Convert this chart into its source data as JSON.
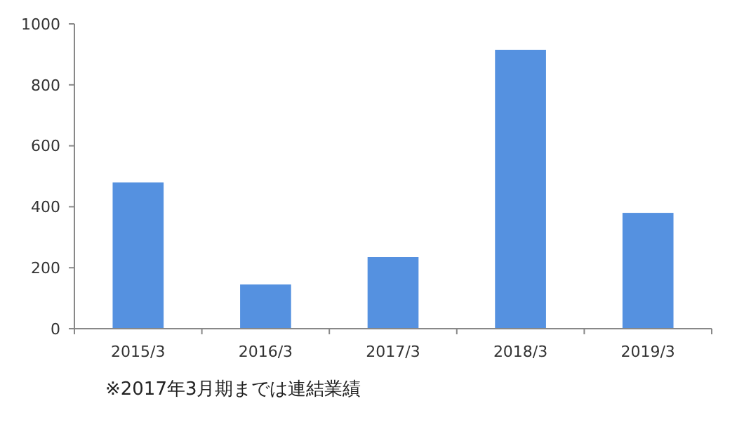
{
  "chart_data": {
    "type": "bar",
    "categories": [
      "2015/3",
      "2016/3",
      "2017/3",
      "2018/3",
      "2019/3"
    ],
    "values": [
      480,
      145,
      235,
      915,
      380
    ],
    "color": "#5591e0",
    "ylim": [
      0,
      1000
    ],
    "yticks": [
      0,
      200,
      400,
      600,
      800,
      1000
    ],
    "grid": false,
    "annotations": [
      "※2017年3月期までは連結業績"
    ]
  }
}
